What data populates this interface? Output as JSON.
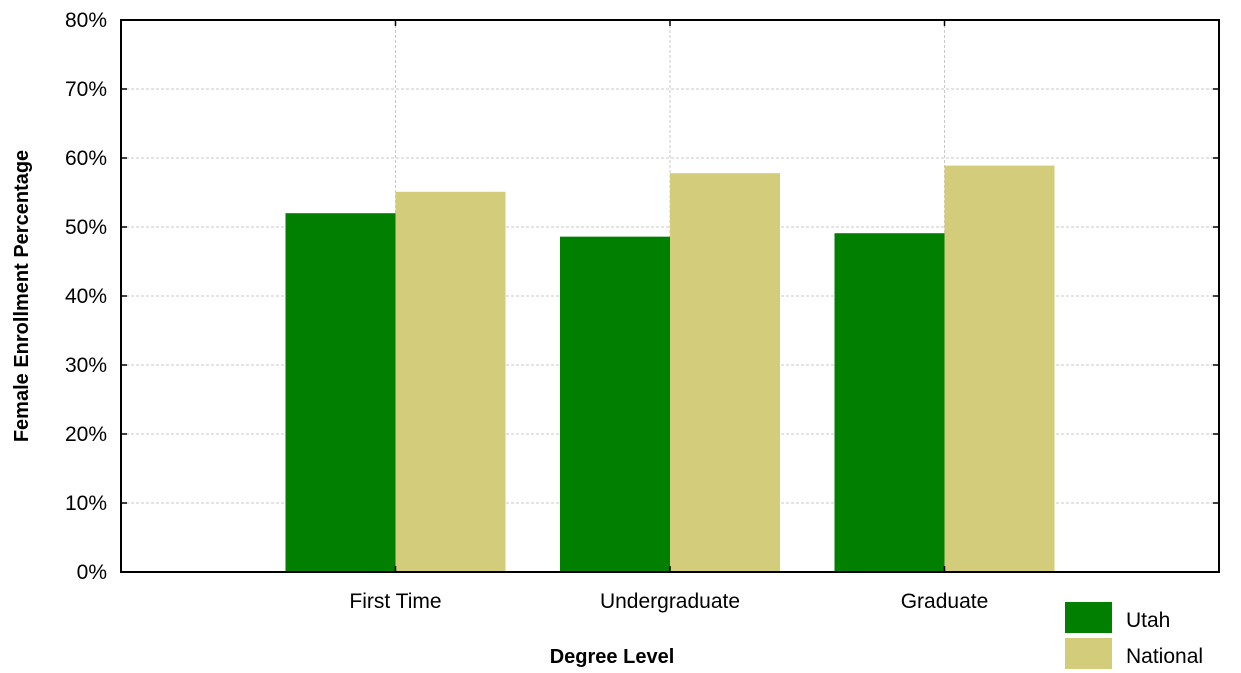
{
  "chart_data": {
    "type": "bar",
    "categories": [
      "First Time",
      "Undergraduate",
      "Graduate"
    ],
    "series": [
      {
        "name": "Utah",
        "values": [
          52.0,
          48.6,
          49.1
        ],
        "color": "#007f00"
      },
      {
        "name": "National",
        "values": [
          55.1,
          57.8,
          58.9
        ],
        "color": "#d3cd7b"
      }
    ],
    "xlabel": "Degree Level",
    "ylabel": "Female Enrollment Percentage",
    "ylim": [
      0,
      80
    ],
    "yticks": [
      "0%",
      "10%",
      "20%",
      "30%",
      "40%",
      "50%",
      "60%",
      "70%",
      "80%"
    ],
    "grid": true,
    "legend_position": "bottom-right"
  }
}
